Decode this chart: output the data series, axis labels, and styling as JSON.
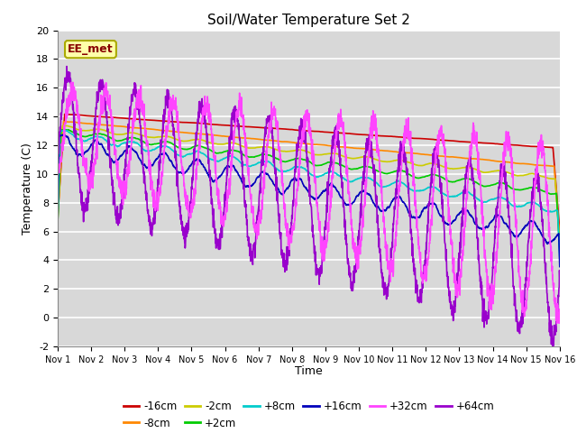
{
  "title": "Soil/Water Temperature Set 2",
  "xlabel": "Time",
  "ylabel": "Temperature (C)",
  "ylim": [
    -2,
    20
  ],
  "xlim": [
    0,
    15
  ],
  "xtick_labels": [
    "Nov 1",
    "Nov 2",
    "Nov 3",
    "Nov 4",
    "Nov 5",
    "Nov 6",
    "Nov 7",
    "Nov 8",
    "Nov 9",
    "Nov 10",
    "Nov 11",
    "Nov 12",
    "Nov 13",
    "Nov 14",
    "Nov 15",
    "Nov 16"
  ],
  "ytick_values": [
    -2,
    0,
    2,
    4,
    6,
    8,
    10,
    12,
    14,
    16,
    18,
    20
  ],
  "plot_bg_color": "#d8d8d8",
  "grid_color": "white",
  "series": {
    "-16cm": {
      "color": "#cc0000",
      "lw": 1.2
    },
    "-8cm": {
      "color": "#ff8800",
      "lw": 1.2
    },
    "-2cm": {
      "color": "#cccc00",
      "lw": 1.2
    },
    "+2cm": {
      "color": "#00cc00",
      "lw": 1.2
    },
    "+8cm": {
      "color": "#00cccc",
      "lw": 1.2
    },
    "+16cm": {
      "color": "#0000bb",
      "lw": 1.2
    },
    "+32cm": {
      "color": "#ff44ff",
      "lw": 1.2
    },
    "+64cm": {
      "color": "#9900cc",
      "lw": 1.2
    }
  },
  "annotation_text": "EE_met",
  "annotation_color": "#880000",
  "annotation_bg": "#ffffaa",
  "annotation_edge": "#aaaa00"
}
